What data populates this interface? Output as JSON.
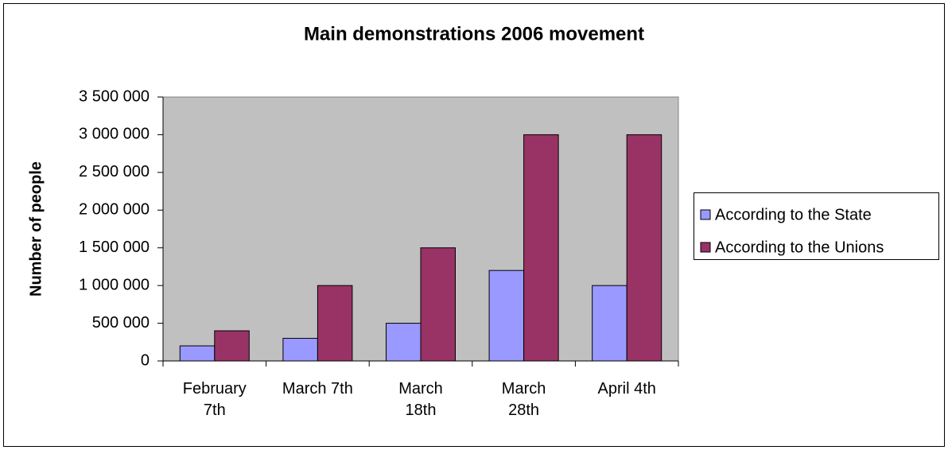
{
  "chart_data": {
    "type": "bar",
    "title": "Main demonstrations 2006 movement",
    "y_label": "Number of people",
    "categories": [
      "February 7th",
      "March 7th",
      "March 18th",
      "March 28th",
      "April 4th"
    ],
    "series": [
      {
        "name": "According to the State",
        "color": "#9999ff",
        "values": [
          200000,
          300000,
          500000,
          1200000,
          1000000
        ]
      },
      {
        "name": "According to the Unions",
        "color": "#993366",
        "values": [
          400000,
          1000000,
          1500000,
          3000000,
          3000000
        ]
      }
    ],
    "ylim": [
      0,
      3500000
    ],
    "yticks": [
      0,
      {
        "value": 500000,
        "label": "500 000"
      },
      {
        "value": 1000000,
        "label": "1 000 000"
      },
      {
        "value": 1500000,
        "label": "1 500 000"
      },
      {
        "value": 2000000,
        "label": "2 000 000"
      },
      {
        "value": 2500000,
        "label": "2 500 000"
      },
      {
        "value": 3000000,
        "label": "3 000 000"
      },
      {
        "value": 3500000,
        "label": "3 500 000"
      }
    ],
    "grid": false,
    "plot_background": "#c0c0c0",
    "legend": "right"
  }
}
